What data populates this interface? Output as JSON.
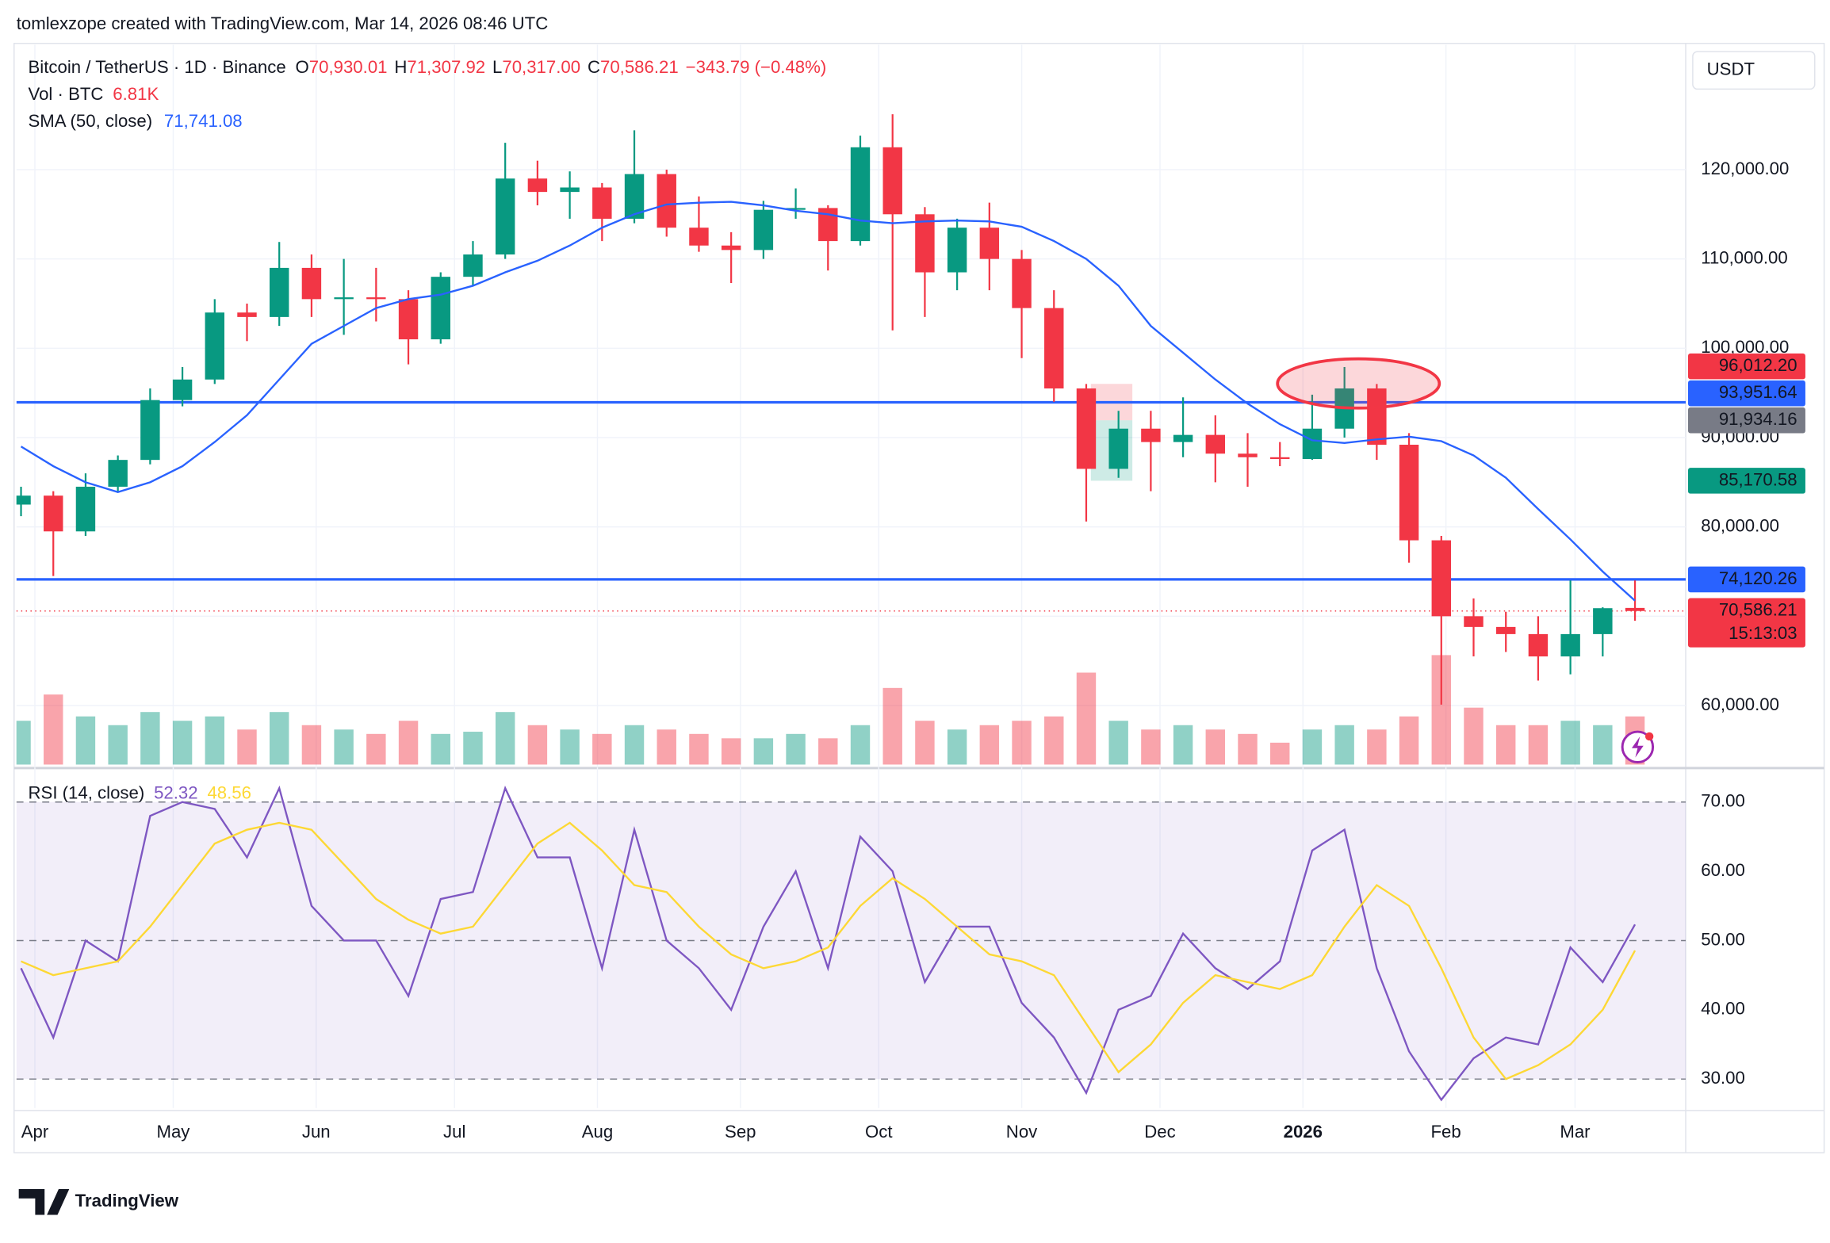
{
  "header": {
    "credit": "tomlexzope created with TradingView.com, Mar 14, 2026 08:46 UTC",
    "brand": "TradingView"
  },
  "chart_data": [
    {
      "type": "candlestick",
      "title": "Bitcoin / TetherUS · 1D · Binance",
      "ohlc_legend": [
        {
          "key": "O",
          "text": "70,930.01"
        },
        {
          "key": "H",
          "text": "71,307.92"
        },
        {
          "key": "L",
          "text": "70,317.00"
        },
        {
          "key": "C",
          "text": "70,586.21"
        }
      ],
      "change": "−343.79 (−0.48%)",
      "currency": "USDT",
      "up_color": "#089981",
      "down_color": "#f23645",
      "x": [
        -3,
        4,
        11,
        18,
        25,
        32,
        39,
        46,
        53,
        60,
        67,
        74,
        81,
        88,
        95,
        102,
        109,
        116,
        123,
        130,
        137,
        144,
        151,
        158,
        165,
        172,
        179,
        186,
        193,
        200,
        207,
        214,
        221,
        228,
        235,
        242,
        249,
        256,
        263,
        270,
        277,
        284,
        291,
        298,
        305,
        312,
        319,
        326,
        333,
        340,
        347
      ],
      "open": [
        82500,
        83500,
        79500,
        84500,
        87500,
        94200,
        96500,
        104000,
        103500,
        109000,
        105500,
        105700,
        105500,
        101000,
        108000,
        110500,
        119000,
        117500,
        118000,
        114500,
        119500,
        113500,
        111500,
        111000,
        115500,
        115700,
        112000,
        122500,
        115000,
        108500,
        113500,
        110000,
        104500,
        95500,
        86500,
        91000,
        89500,
        90300,
        88200,
        87800,
        87600,
        91000,
        95500,
        89200,
        78500,
        70000,
        68800,
        68000,
        65500,
        68000,
        70930.01
      ],
      "high": [
        84500,
        84000,
        86000,
        88000,
        95500,
        97900,
        105500,
        105000,
        111900,
        110500,
        110000,
        109000,
        106500,
        108500,
        112000,
        123000,
        121000,
        119800,
        118500,
        124400,
        120000,
        117000,
        113000,
        116500,
        117900,
        116000,
        123800,
        126200,
        115800,
        114500,
        116300,
        111000,
        106500,
        96000,
        93000,
        93000,
        94500,
        92500,
        90500,
        89500,
        94800,
        97900,
        96000,
        90500,
        79000,
        72000,
        70500,
        70000,
        74000,
        71000,
        74000
      ],
      "low": [
        81200,
        74500,
        79000,
        83900,
        87000,
        93500,
        96000,
        100800,
        102500,
        103500,
        101500,
        103000,
        98200,
        100500,
        107000,
        110000,
        116000,
        114500,
        112000,
        114000,
        112500,
        110800,
        107300,
        110000,
        114500,
        108700,
        111500,
        102000,
        103500,
        106500,
        106500,
        98900,
        94000,
        80600,
        85500,
        84000,
        87800,
        85000,
        84500,
        86800,
        87500,
        90000,
        87500,
        76000,
        60100,
        65500,
        66000,
        62800,
        63500,
        65500,
        69500
      ],
      "close": [
        83500,
        79500,
        84500,
        87500,
        94200,
        96500,
        104000,
        103500,
        109000,
        105500,
        105700,
        105500,
        101000,
        108000,
        110500,
        119000,
        117500,
        118000,
        114500,
        119500,
        113500,
        111500,
        111000,
        115500,
        115700,
        112000,
        122500,
        115000,
        108500,
        113500,
        110000,
        104500,
        95500,
        86500,
        91000,
        89500,
        90300,
        88200,
        87800,
        87600,
        91000,
        95500,
        89200,
        78500,
        70000,
        68800,
        68000,
        65500,
        68000,
        70900,
        70586.21
      ],
      "xlim": [
        -4,
        358
      ],
      "xticks": [
        {
          "value": 0,
          "label": "Apr"
        },
        {
          "value": 30,
          "label": "May"
        },
        {
          "value": 61,
          "label": "Jun"
        },
        {
          "value": 91,
          "label": "Jul"
        },
        {
          "value": 122,
          "label": "Aug"
        },
        {
          "value": 153,
          "label": "Sep"
        },
        {
          "value": 183,
          "label": "Oct"
        },
        {
          "value": 214,
          "label": "Nov"
        },
        {
          "value": 244,
          "label": "Dec"
        },
        {
          "value": 275,
          "label": "2026"
        },
        {
          "value": 306,
          "label": "Feb"
        },
        {
          "value": 334,
          "label": "Mar"
        }
      ],
      "ylim": [
        53000,
        134000
      ],
      "yticks": [
        {
          "value": 60000,
          "label": "60,000.00"
        },
        {
          "value": 70000,
          "label": "70,000.00"
        },
        {
          "value": 80000,
          "label": "80,000.00"
        },
        {
          "value": 90000,
          "label": "90,000.00"
        },
        {
          "value": 100000,
          "label": "100,000.00"
        },
        {
          "value": 110000,
          "label": "110,000.00"
        },
        {
          "value": 120000,
          "label": "120,000.00"
        }
      ],
      "grid": true,
      "series": [
        {
          "name": "SMA (50, close)",
          "color": "#2962ff",
          "value_label": "71,741.08",
          "values": [
            89000,
            86800,
            85000,
            83900,
            85000,
            86800,
            89500,
            92500,
            96500,
            100500,
            102500,
            104500,
            105500,
            106000,
            107000,
            108500,
            109800,
            111500,
            113500,
            115000,
            116100,
            116300,
            116400,
            116000,
            115400,
            115000,
            114300,
            114000,
            114200,
            114300,
            114200,
            113600,
            112000,
            110000,
            107000,
            102500,
            99500,
            96500,
            93800,
            91500,
            89700,
            89400,
            89800,
            90100,
            89600,
            88000,
            85500,
            82000,
            78600,
            75000,
            71741.08
          ]
        }
      ],
      "volume": {
        "name": "Vol · BTC",
        "value_label": "6.81K",
        "ylim": [
          0,
          60
        ],
        "values": [
          20,
          32,
          22,
          18,
          24,
          20,
          22,
          16,
          24,
          18,
          16,
          14,
          20,
          14,
          15,
          24,
          18,
          16,
          14,
          18,
          16,
          14,
          12,
          12,
          14,
          12,
          18,
          35,
          20,
          16,
          18,
          20,
          22,
          42,
          20,
          16,
          18,
          16,
          14,
          10,
          16,
          18,
          16,
          22,
          50,
          26,
          18,
          18,
          20,
          18,
          22
        ]
      },
      "levels": [
        {
          "value": 93951.64,
          "label": "93,951.64",
          "color": "#2962ff"
        },
        {
          "value": 74120.26,
          "label": "74,120.26",
          "color": "#2962ff"
        }
      ],
      "position": {
        "x": [
          229,
          238
        ],
        "stop": {
          "value": 96012.2,
          "label": "96,012.20",
          "color": "#f23645"
        },
        "entry": {
          "value": 91934.16,
          "label": "91,934.16",
          "color": "#787b86"
        },
        "target": {
          "value": 85170.58,
          "label": "85,170.58",
          "color": "#089981"
        }
      },
      "last_price": {
        "value": 70586.21,
        "label": "70,586.21",
        "countdown": "15:13:03",
        "color": "#f23645"
      }
    },
    {
      "type": "line",
      "title": "RSI (14, close)",
      "ylim": [
        25.8,
        74.9
      ],
      "yticks": [
        {
          "value": 30,
          "label": "30.00"
        },
        {
          "value": 40,
          "label": "40.00"
        },
        {
          "value": 50,
          "label": "50.00"
        },
        {
          "value": 60,
          "label": "60.00"
        },
        {
          "value": 70,
          "label": "70.00"
        }
      ],
      "series": [
        {
          "color": "#7e57c2",
          "value_label": "52.32",
          "values": [
            46,
            36,
            50,
            47,
            68,
            70,
            69,
            62,
            72,
            55,
            50,
            50,
            42,
            56,
            57,
            72,
            62,
            62,
            46,
            66,
            50,
            46,
            40,
            52,
            60,
            46,
            65,
            60,
            44,
            52,
            52,
            41,
            36,
            28,
            40,
            42,
            51,
            46,
            43,
            47,
            63,
            66,
            46,
            34,
            27,
            33,
            36,
            35,
            49,
            44,
            52.32
          ]
        },
        {
          "color": "#fdd835",
          "value_label": "48.56",
          "values": [
            47,
            45,
            46,
            47,
            52,
            58,
            64,
            66,
            67,
            66,
            61,
            56,
            53,
            51,
            52,
            58,
            64,
            67,
            63,
            58,
            57,
            52,
            48,
            46,
            47,
            49,
            55,
            59,
            56,
            52,
            48,
            47,
            45,
            38,
            31,
            35,
            41,
            45,
            44,
            43,
            45,
            52,
            58,
            55,
            46,
            36,
            30,
            32,
            35,
            40,
            48.56
          ]
        }
      ]
    }
  ]
}
